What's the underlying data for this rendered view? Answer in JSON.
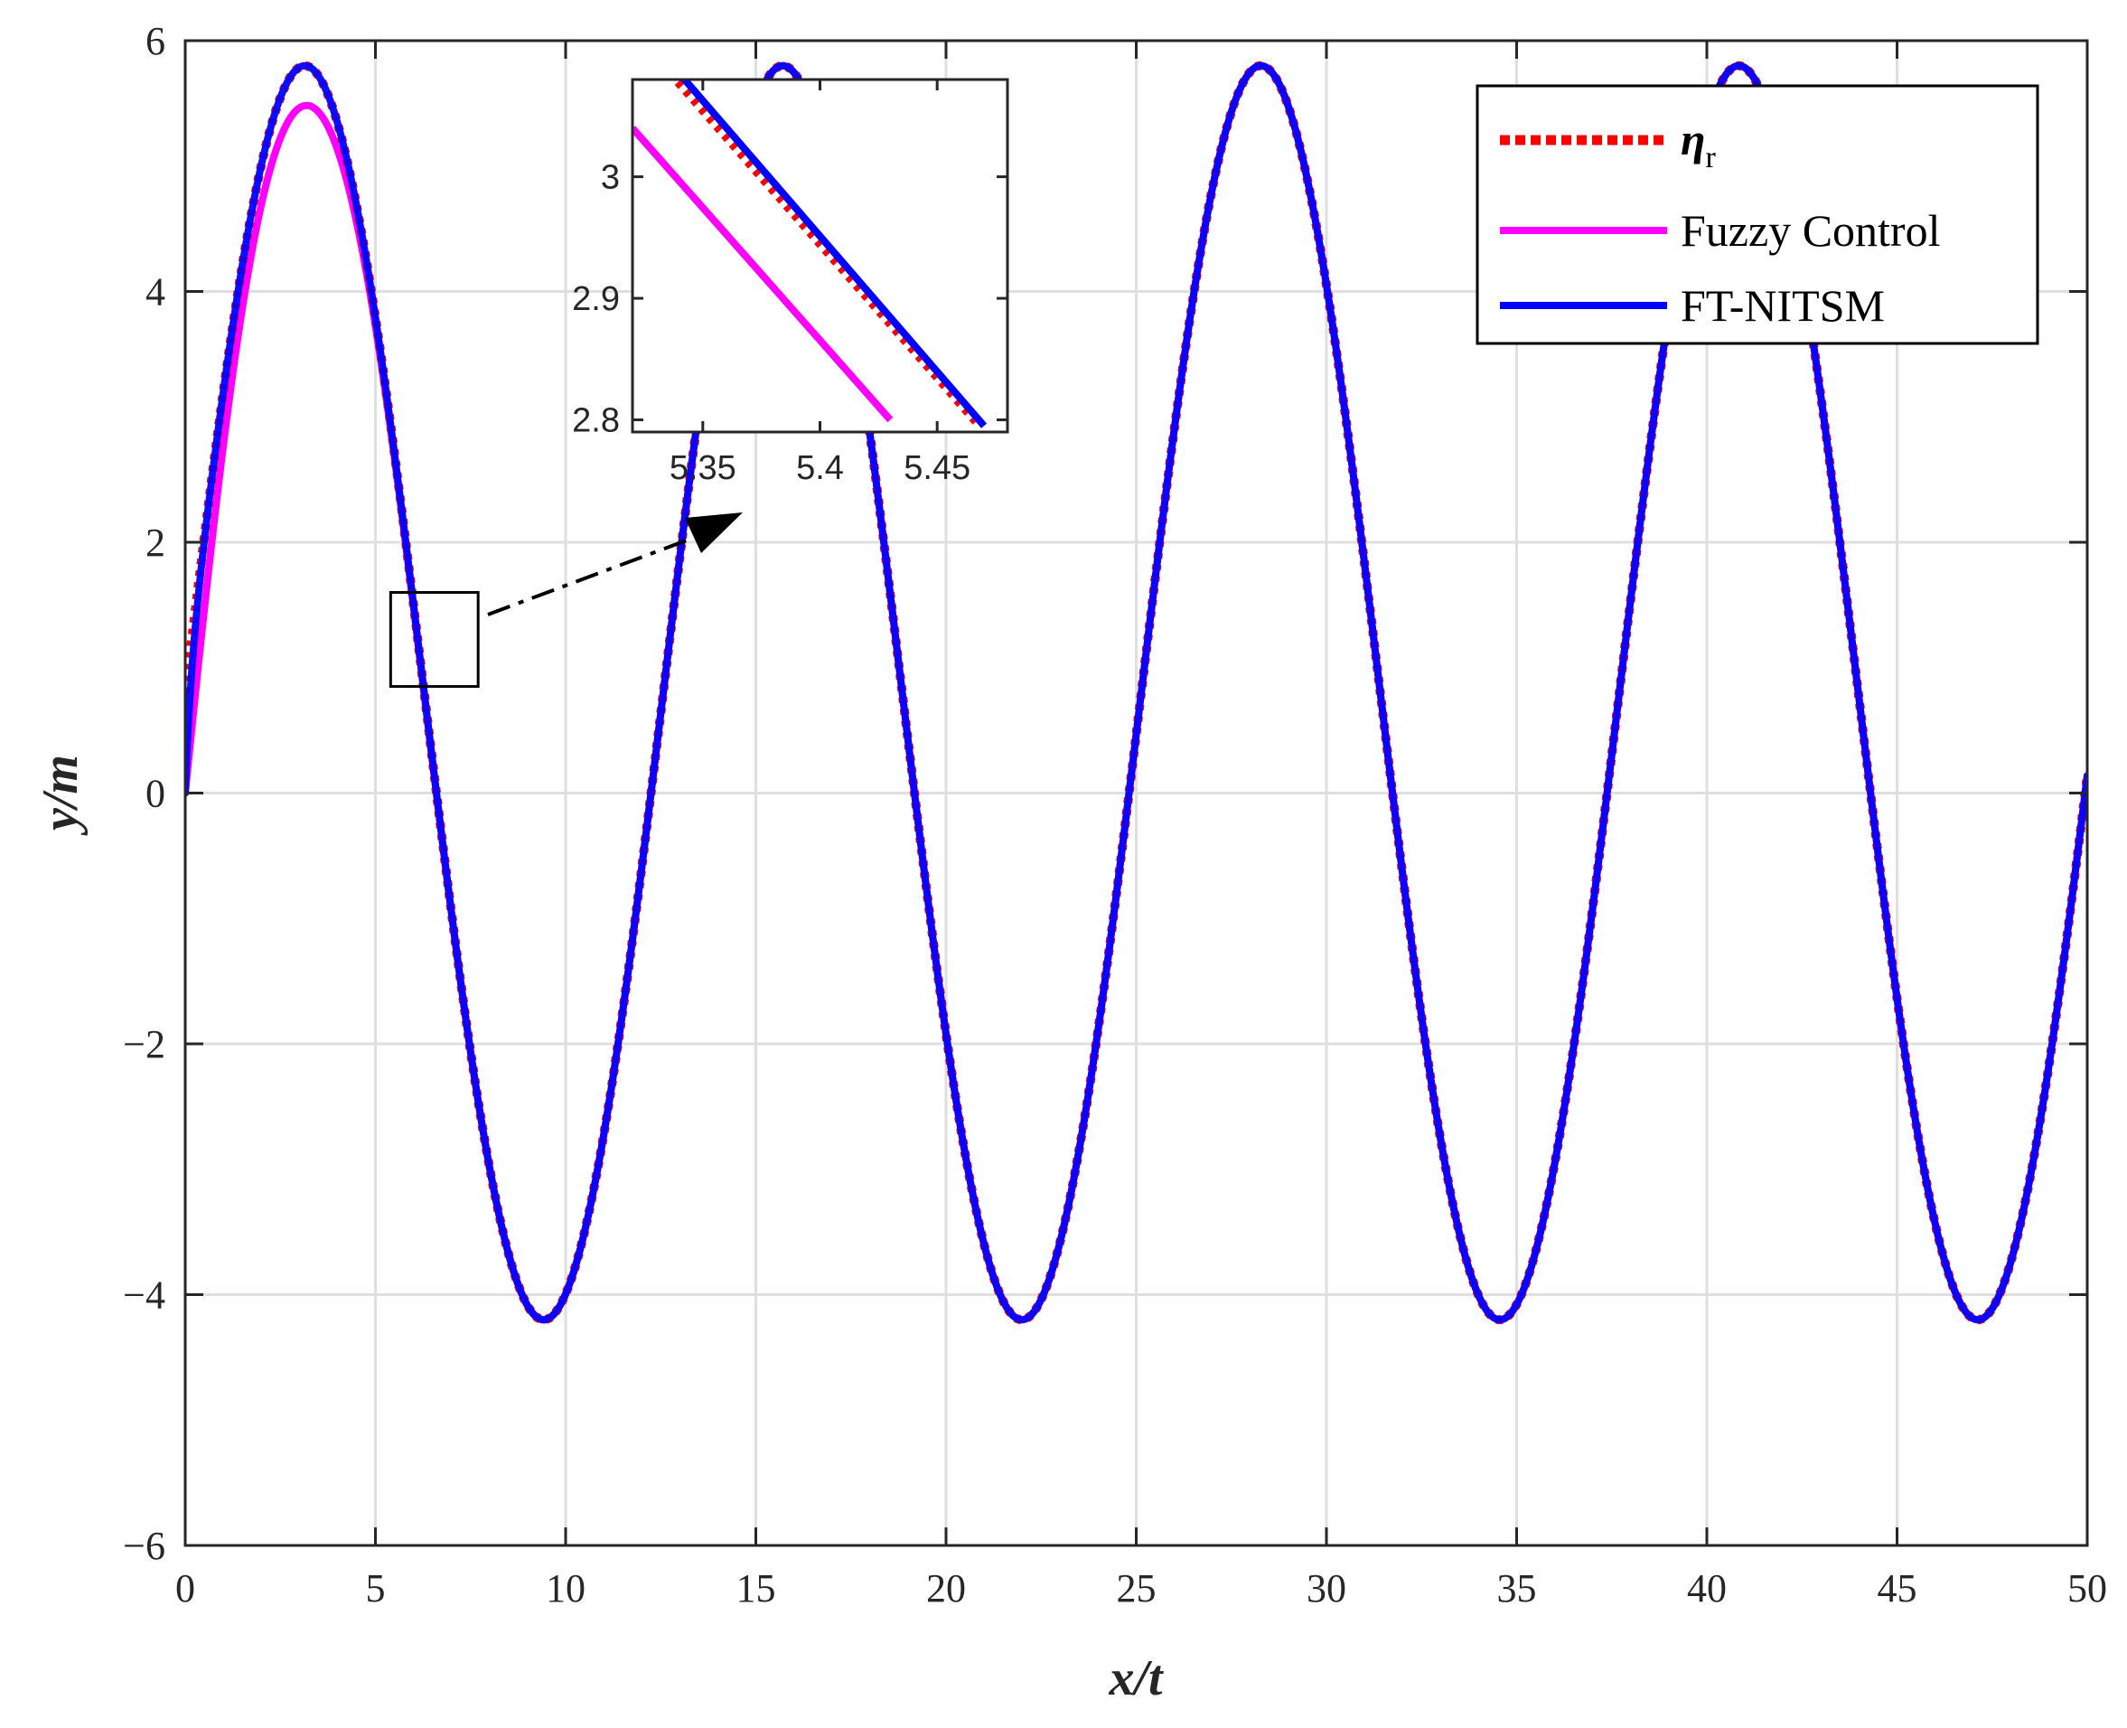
{
  "chart_data": {
    "type": "line",
    "title": "",
    "xlabel": "x/t",
    "ylabel": "y/m",
    "xlim": [
      0,
      50
    ],
    "ylim": [
      -6,
      6
    ],
    "xticks": [
      0,
      5,
      10,
      15,
      20,
      25,
      30,
      35,
      40,
      45,
      50
    ],
    "xtick_labels": [
      "0",
      "5",
      "10",
      "15",
      "20",
      "25",
      "30",
      "35",
      "40",
      "45",
      "50"
    ],
    "yticks": [
      -6,
      -4,
      -2,
      0,
      2,
      4,
      6
    ],
    "ytick_labels": [
      "−6",
      "−4",
      "−2",
      "0",
      "2",
      "4",
      "6"
    ],
    "grid": true,
    "legend_position": "top-right",
    "reference_model": {
      "offset": 0.8,
      "amplitude": 5.0,
      "omega": 0.5,
      "phase": 0.0
    },
    "series": [
      {
        "key": "eta_r",
        "name_main": "η",
        "name_sub": "r",
        "color": "#ff0000",
        "style": "dotted",
        "y0": 0.8,
        "transient_tau": 0.0,
        "peak_shortfall": 0.0
      },
      {
        "key": "fuzzy",
        "name": "Fuzzy Control",
        "color": "#ff00ff",
        "style": "solid",
        "y0": 0.0,
        "transient_tau": 1.5,
        "peak_shortfall": 0.22
      },
      {
        "key": "ftnitsm",
        "name": "FT-NITSM",
        "color": "#0000ff",
        "style": "solid",
        "y0": 0.0,
        "transient_tau": 0.15,
        "peak_shortfall": 0.0
      }
    ],
    "inset": {
      "xlim": [
        5.32,
        5.48
      ],
      "ylim": [
        2.79,
        3.08
      ],
      "xticks": [
        5.35,
        5.4,
        5.45
      ],
      "xtick_labels": [
        "5.35",
        "5.4",
        "5.45"
      ],
      "yticks": [
        2.8,
        2.9,
        3.0
      ],
      "ytick_labels": [
        "2.8",
        "2.9",
        "3"
      ],
      "zoom_box": {
        "xlim": [
          5.4,
          7.7
        ],
        "ylim": [
          0.85,
          1.6
        ]
      },
      "lines": [
        {
          "key": "fuzzy",
          "color": "#ff00ff",
          "points": [
            [
              5.32,
              3.04
            ],
            [
              5.43,
              2.8
            ]
          ]
        },
        {
          "key": "eta_r",
          "color": "#ff0000",
          "points": [
            [
              5.336,
              3.085
            ],
            [
              5.468,
              2.795
            ]
          ]
        },
        {
          "key": "ftnitsm",
          "color": "#0000ff",
          "points": [
            [
              5.34,
              3.085
            ],
            [
              5.47,
              2.795
            ]
          ]
        }
      ]
    }
  }
}
